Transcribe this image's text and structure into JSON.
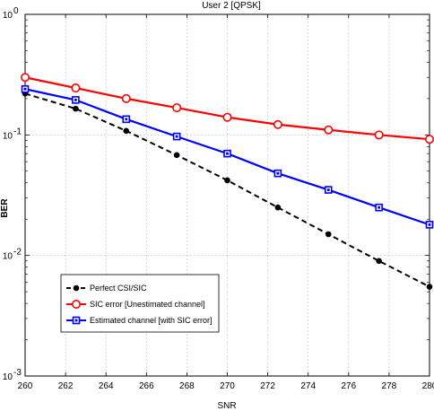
{
  "chart_data": {
    "type": "line",
    "title": "User 2 [QPSK]",
    "xlabel": "SNR",
    "ylabel": "BER",
    "xlim": [
      260,
      280
    ],
    "ylim": [
      0.001,
      1
    ],
    "yscale": "log",
    "grid": true,
    "legend_position": "bottom-left",
    "x_ticks": [
      260,
      262,
      264,
      266,
      268,
      270,
      272,
      274,
      276,
      278,
      280
    ],
    "x_tick_labels": [
      "260",
      "262",
      "264",
      "266",
      "268",
      "270",
      "272",
      "274",
      "276",
      "278",
      "280"
    ],
    "y_ticks": [
      0.001,
      0.01,
      0.1,
      1
    ],
    "y_tick_labels": [
      {
        "base": "10",
        "exp": "-3"
      },
      {
        "base": "10",
        "exp": "-2"
      },
      {
        "base": "10",
        "exp": "-1"
      },
      {
        "base": "10",
        "exp": "0"
      }
    ],
    "series": [
      {
        "name": "Perfect CSI/SIC",
        "color": "#000000",
        "dash": "dashed",
        "marker": "dot",
        "x": [
          260,
          262.5,
          265,
          267.5,
          270,
          272.5,
          275,
          277.5,
          280
        ],
        "values": [
          0.22,
          0.165,
          0.108,
          0.068,
          0.042,
          0.025,
          0.015,
          0.009,
          0.0055
        ]
      },
      {
        "name": "SIC error [Unestimated channel]",
        "color": "#ff0000",
        "dash": "solid",
        "marker": "circle",
        "x": [
          260,
          262.5,
          265,
          267.5,
          270,
          272.5,
          275,
          277.5,
          280
        ],
        "values": [
          0.3,
          0.245,
          0.2,
          0.168,
          0.14,
          0.122,
          0.11,
          0.1,
          0.092
        ]
      },
      {
        "name": "Estimated channel [with SIC error]",
        "color": "#0000ff",
        "dash": "solid",
        "marker": "square",
        "x": [
          260,
          262.5,
          265,
          267.5,
          270,
          272.5,
          275,
          277.5,
          280
        ],
        "values": [
          0.24,
          0.195,
          0.135,
          0.097,
          0.07,
          0.048,
          0.035,
          0.025,
          0.018
        ]
      }
    ]
  }
}
